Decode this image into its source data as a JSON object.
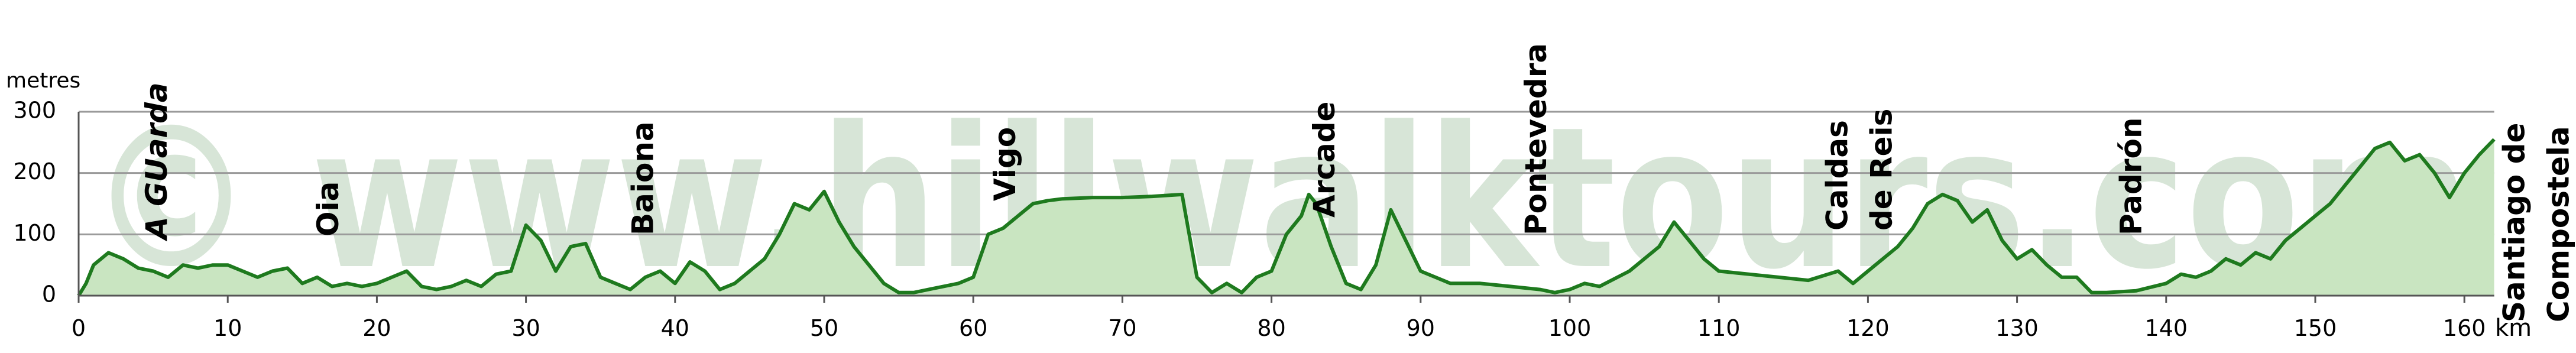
{
  "chart_data": {
    "type": "area",
    "watermark": "© www.hillwalktours.com",
    "y_label": "metres",
    "x_label": "km",
    "xlim": [
      0,
      162
    ],
    "xticks": [
      0,
      10,
      20,
      30,
      40,
      50,
      60,
      70,
      80,
      90,
      100,
      110,
      120,
      130,
      140,
      150,
      160
    ],
    "ylim": [
      0,
      300
    ],
    "yticks": [
      0,
      100,
      200,
      300
    ],
    "grid": true,
    "line_color": "#1e7a1e",
    "fill_color": "#c9e5c1",
    "places": [
      {
        "lines": [
          "A GUarda"
        ],
        "km": 5.2
      },
      {
        "lines": [
          "Oia"
        ],
        "km": 16.7
      },
      {
        "lines": [
          "Baiona"
        ],
        "km": 37.8
      },
      {
        "lines": [
          "Vigo"
        ],
        "km": 62.1
      },
      {
        "lines": [
          "Arcade"
        ],
        "km": 83.5
      },
      {
        "lines": [
          "Pontevedra"
        ],
        "km": 97.7
      },
      {
        "lines": [
          "Caldas",
          "de Reis"
        ],
        "km": 117.9
      },
      {
        "lines": [
          "Padrón"
        ],
        "km": 137.6
      },
      {
        "lines": [
          "Santiago de",
          "Compostela"
        ],
        "km": 163.3
      }
    ],
    "x": [
      0,
      0.5,
      1,
      2,
      3,
      4,
      5,
      6,
      7,
      8,
      9,
      10,
      11,
      12,
      13,
      14,
      15,
      16,
      17,
      18,
      19,
      20,
      21,
      22,
      23,
      24,
      25,
      26,
      27,
      28,
      29,
      30,
      31,
      32,
      33,
      34,
      35,
      36,
      37,
      38,
      39,
      40,
      41,
      42,
      43,
      44,
      45,
      46,
      47,
      48,
      49,
      50,
      51,
      52,
      53,
      54,
      55,
      56,
      57,
      58,
      59,
      60,
      61,
      62,
      63,
      64,
      65,
      66,
      68,
      70,
      72,
      74,
      75,
      76,
      77,
      78,
      79,
      80,
      81,
      82,
      82.5,
      83,
      84,
      85,
      86,
      87,
      88,
      89,
      90,
      91,
      92,
      94,
      96,
      98,
      99,
      100,
      101,
      102,
      104,
      106,
      107,
      108,
      109,
      110,
      112,
      114,
      116,
      118,
      119,
      120,
      121,
      122,
      123,
      124,
      125,
      126,
      127,
      128,
      129,
      130,
      131,
      132,
      133,
      134,
      135,
      136,
      138,
      140,
      141,
      142,
      143,
      144,
      145,
      146,
      147,
      148,
      149,
      150,
      151,
      152,
      153,
      154,
      155,
      156,
      157,
      158,
      159,
      160,
      161,
      162
    ],
    "values": [
      0,
      20,
      50,
      70,
      60,
      45,
      40,
      30,
      50,
      45,
      50,
      50,
      40,
      30,
      40,
      45,
      20,
      30,
      15,
      20,
      15,
      20,
      30,
      40,
      15,
      10,
      15,
      25,
      15,
      35,
      40,
      115,
      90,
      40,
      80,
      85,
      30,
      20,
      10,
      30,
      40,
      20,
      55,
      40,
      10,
      20,
      40,
      60,
      100,
      150,
      140,
      170,
      120,
      80,
      50,
      20,
      5,
      5,
      10,
      15,
      20,
      30,
      100,
      110,
      130,
      150,
      155,
      158,
      160,
      160,
      162,
      165,
      30,
      5,
      20,
      5,
      30,
      40,
      100,
      130,
      165,
      150,
      80,
      20,
      10,
      50,
      140,
      90,
      40,
      30,
      20,
      20,
      15,
      10,
      5,
      10,
      20,
      15,
      40,
      80,
      120,
      90,
      60,
      40,
      35,
      30,
      25,
      40,
      20,
      40,
      60,
      80,
      110,
      150,
      165,
      155,
      120,
      140,
      90,
      60,
      75,
      50,
      30,
      30,
      5,
      5,
      8,
      20,
      35,
      30,
      40,
      60,
      50,
      70,
      60,
      90,
      110,
      130,
      150,
      180,
      210,
      240,
      250,
      220,
      230,
      200,
      160,
      200,
      230,
      255
    ]
  }
}
